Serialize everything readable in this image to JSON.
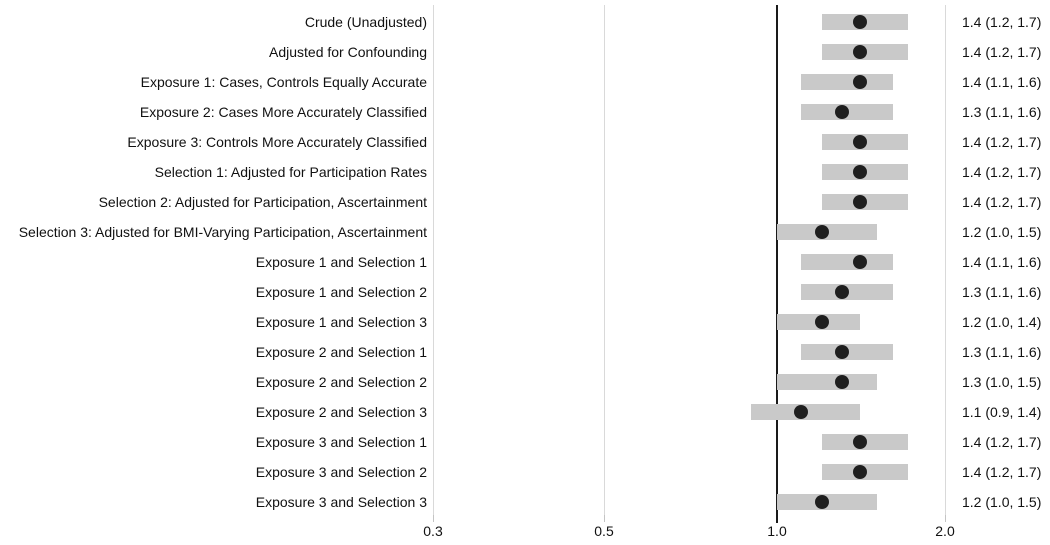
{
  "colors": {
    "background": "#ffffff",
    "ci_bar": "#c9c9c9",
    "point": "#1f1f1f",
    "gridline": "#d9d9d9",
    "reference_line": "#1a1a1a",
    "text": "#111111"
  },
  "chart_data": {
    "type": "scatter",
    "subtype": "forest_plot_with_ci_bars",
    "x_scale": "log",
    "x_tick_labels": [
      "0.3",
      "0.5",
      "1.0",
      "2.0"
    ],
    "reference_line_x": 1.0,
    "grid": "vertical-gridlines-only",
    "legend": "none",
    "title": "",
    "rows": [
      {
        "label": "Crude (Unadjusted)",
        "estimate": 1.4,
        "ci_low": 1.2,
        "ci_high": 1.7,
        "display": "1.4 (1.2, 1.7)"
      },
      {
        "label": "Adjusted for Confounding",
        "estimate": 1.4,
        "ci_low": 1.2,
        "ci_high": 1.7,
        "display": "1.4 (1.2, 1.7)"
      },
      {
        "label": "Exposure 1: Cases, Controls Equally Accurate",
        "estimate": 1.4,
        "ci_low": 1.1,
        "ci_high": 1.6,
        "display": "1.4 (1.1, 1.6)"
      },
      {
        "label": "Exposure 2: Cases More Accurately Classified",
        "estimate": 1.3,
        "ci_low": 1.1,
        "ci_high": 1.6,
        "display": "1.3 (1.1, 1.6)"
      },
      {
        "label": "Exposure 3: Controls More Accurately Classified",
        "estimate": 1.4,
        "ci_low": 1.2,
        "ci_high": 1.7,
        "display": "1.4 (1.2, 1.7)"
      },
      {
        "label": "Selection 1: Adjusted for Participation Rates",
        "estimate": 1.4,
        "ci_low": 1.2,
        "ci_high": 1.7,
        "display": "1.4 (1.2, 1.7)"
      },
      {
        "label": "Selection 2: Adjusted for Participation, Ascertainment",
        "estimate": 1.4,
        "ci_low": 1.2,
        "ci_high": 1.7,
        "display": "1.4 (1.2, 1.7)"
      },
      {
        "label": "Selection 3: Adjusted for BMI-Varying Participation, Ascertainment",
        "estimate": 1.2,
        "ci_low": 1.0,
        "ci_high": 1.5,
        "display": "1.2 (1.0, 1.5)"
      },
      {
        "label": "Exposure 1 and Selection 1",
        "estimate": 1.4,
        "ci_low": 1.1,
        "ci_high": 1.6,
        "display": "1.4 (1.1, 1.6)"
      },
      {
        "label": "Exposure 1 and Selection 2",
        "estimate": 1.3,
        "ci_low": 1.1,
        "ci_high": 1.6,
        "display": "1.3 (1.1, 1.6)"
      },
      {
        "label": "Exposure 1 and Selection 3",
        "estimate": 1.2,
        "ci_low": 1.0,
        "ci_high": 1.4,
        "display": "1.2 (1.0, 1.4)"
      },
      {
        "label": "Exposure 2 and Selection 1",
        "estimate": 1.3,
        "ci_low": 1.1,
        "ci_high": 1.6,
        "display": "1.3 (1.1, 1.6)"
      },
      {
        "label": "Exposure 2 and Selection 2",
        "estimate": 1.3,
        "ci_low": 1.0,
        "ci_high": 1.5,
        "display": "1.3 (1.0, 1.5)"
      },
      {
        "label": "Exposure 2 and Selection 3",
        "estimate": 1.1,
        "ci_low": 0.9,
        "ci_high": 1.4,
        "display": "1.1 (0.9, 1.4)"
      },
      {
        "label": "Exposure 3 and Selection 1",
        "estimate": 1.4,
        "ci_low": 1.2,
        "ci_high": 1.7,
        "display": "1.4 (1.2, 1.7)"
      },
      {
        "label": "Exposure 3 and Selection 2",
        "estimate": 1.4,
        "ci_low": 1.2,
        "ci_high": 1.7,
        "display": "1.4 (1.2, 1.7)"
      },
      {
        "label": "Exposure 3 and Selection 3",
        "estimate": 1.2,
        "ci_low": 1.0,
        "ci_high": 1.5,
        "display": "1.2 (1.0, 1.5)"
      }
    ]
  }
}
